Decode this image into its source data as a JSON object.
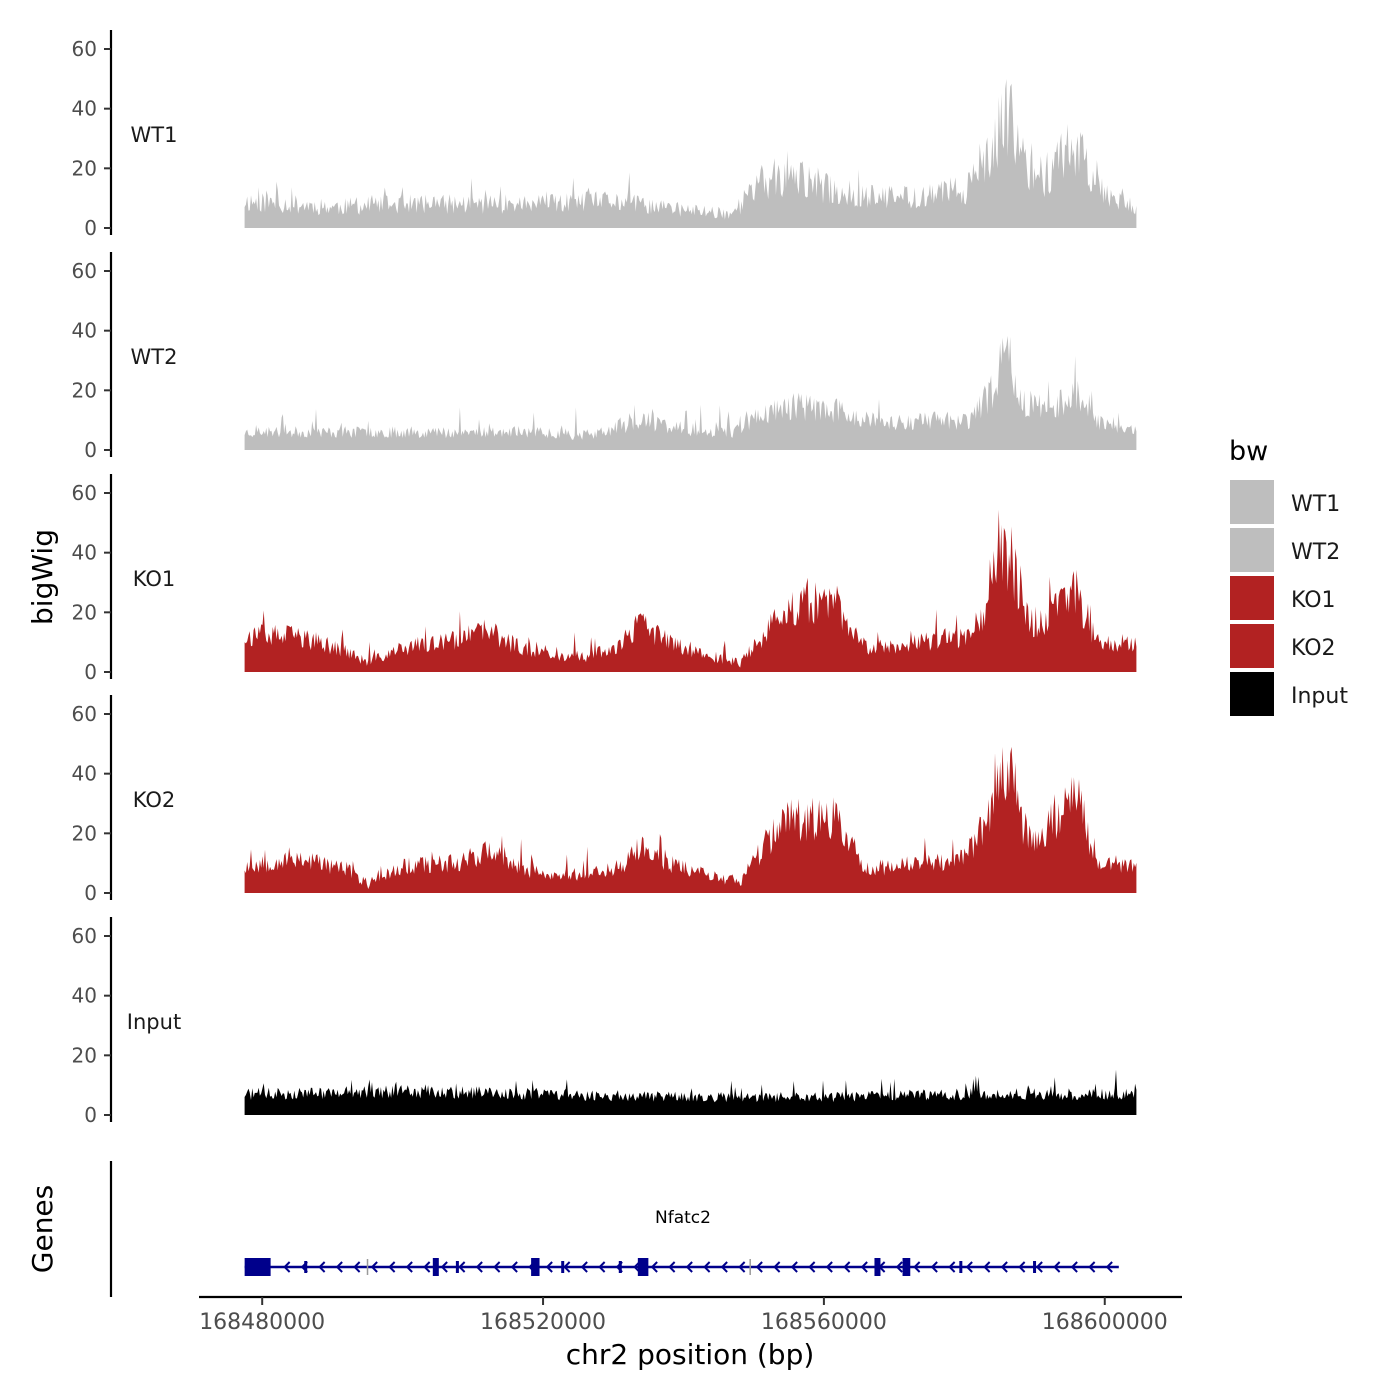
{
  "chart_data": {
    "type": "area",
    "ylabel": "bigWig",
    "xlabel": "chr2 position (bp)",
    "xlim": [
      168471000,
      168611000
    ],
    "ylim": [
      0,
      65
    ],
    "y_ticks": [
      0,
      20,
      40,
      60
    ],
    "x_ticks": [
      168480000,
      168520000,
      168560000,
      168600000
    ],
    "x_tick_labels": [
      "168480000",
      "168520000",
      "168560000",
      "168600000"
    ],
    "data_range": [
      168477500,
      168604500
    ],
    "legend": {
      "title": "bw",
      "position": "right",
      "entries": [
        {
          "label": "WT1",
          "color": "#bebebe"
        },
        {
          "label": "WT2",
          "color": "#bebebe"
        },
        {
          "label": "KO1",
          "color": "#b22222"
        },
        {
          "label": "KO2",
          "color": "#b22222"
        },
        {
          "label": "Input",
          "color": "#000000"
        }
      ]
    },
    "series": [
      {
        "name": "WT1",
        "color": "#bebebe",
        "seed": 11,
        "noise": 5,
        "base": 4,
        "profile": [
          [
            168477500,
            9
          ],
          [
            168490000,
            7
          ],
          [
            168500000,
            8
          ],
          [
            168510000,
            8
          ],
          [
            168520000,
            8
          ],
          [
            168530000,
            9
          ],
          [
            168540000,
            6
          ],
          [
            168547000,
            5
          ],
          [
            168551000,
            15
          ],
          [
            168556000,
            17
          ],
          [
            168562000,
            12
          ],
          [
            168568000,
            10
          ],
          [
            168576000,
            11
          ],
          [
            168581000,
            14
          ],
          [
            168584000,
            24
          ],
          [
            168586000,
            40
          ],
          [
            168588000,
            25
          ],
          [
            168591000,
            16
          ],
          [
            168594000,
            25
          ],
          [
            168596000,
            28
          ],
          [
            168599000,
            14
          ],
          [
            168604500,
            7
          ]
        ]
      },
      {
        "name": "WT2",
        "color": "#bebebe",
        "seed": 23,
        "noise": 4,
        "base": 3,
        "profile": [
          [
            168477500,
            6
          ],
          [
            168490000,
            6
          ],
          [
            168500000,
            6
          ],
          [
            168510000,
            6
          ],
          [
            168520000,
            6
          ],
          [
            168527000,
            5
          ],
          [
            168534000,
            10
          ],
          [
            168540000,
            7
          ],
          [
            168547000,
            6
          ],
          [
            168551000,
            12
          ],
          [
            168556000,
            15
          ],
          [
            168562000,
            13
          ],
          [
            168568000,
            9
          ],
          [
            168576000,
            10
          ],
          [
            168581000,
            10
          ],
          [
            168584000,
            20
          ],
          [
            168586000,
            34
          ],
          [
            168588000,
            18
          ],
          [
            168591000,
            12
          ],
          [
            168594000,
            17
          ],
          [
            168596000,
            20
          ],
          [
            168599000,
            10
          ],
          [
            168604500,
            6
          ]
        ]
      },
      {
        "name": "KO1",
        "color": "#b22222",
        "seed": 37,
        "noise": 4,
        "base": 3,
        "profile": [
          [
            168477500,
            12
          ],
          [
            168485000,
            12
          ],
          [
            168492000,
            7
          ],
          [
            168495000,
            3
          ],
          [
            168500000,
            8
          ],
          [
            168507000,
            10
          ],
          [
            168512000,
            14
          ],
          [
            168516000,
            9
          ],
          [
            168520000,
            6
          ],
          [
            168526000,
            5
          ],
          [
            168531000,
            9
          ],
          [
            168534000,
            16
          ],
          [
            168538000,
            10
          ],
          [
            168544000,
            5
          ],
          [
            168548000,
            3
          ],
          [
            168552000,
            14
          ],
          [
            168557000,
            24
          ],
          [
            168562000,
            22
          ],
          [
            168566000,
            8
          ],
          [
            168574000,
            10
          ],
          [
            168580000,
            12
          ],
          [
            168583000,
            22
          ],
          [
            168585000,
            45
          ],
          [
            168587000,
            36
          ],
          [
            168589000,
            18
          ],
          [
            168591000,
            16
          ],
          [
            168594000,
            28
          ],
          [
            168596000,
            26
          ],
          [
            168599000,
            10
          ],
          [
            168604500,
            10
          ]
        ]
      },
      {
        "name": "KO2",
        "color": "#b22222",
        "seed": 53,
        "noise": 4,
        "base": 3,
        "profile": [
          [
            168477500,
            9
          ],
          [
            168485000,
            12
          ],
          [
            168492000,
            8
          ],
          [
            168495000,
            3
          ],
          [
            168500000,
            9
          ],
          [
            168507000,
            10
          ],
          [
            168512000,
            14
          ],
          [
            168516000,
            9
          ],
          [
            168520000,
            6
          ],
          [
            168526000,
            6
          ],
          [
            168531000,
            9
          ],
          [
            168534000,
            15
          ],
          [
            168538000,
            10
          ],
          [
            168544000,
            6
          ],
          [
            168548000,
            3
          ],
          [
            168552000,
            18
          ],
          [
            168556000,
            26
          ],
          [
            168562000,
            24
          ],
          [
            168566000,
            8
          ],
          [
            168574000,
            10
          ],
          [
            168580000,
            12
          ],
          [
            168583000,
            22
          ],
          [
            168585000,
            46
          ],
          [
            168587000,
            36
          ],
          [
            168589000,
            18
          ],
          [
            168591000,
            18
          ],
          [
            168594000,
            30
          ],
          [
            168596000,
            32
          ],
          [
            168599000,
            10
          ],
          [
            168604500,
            9
          ]
        ]
      },
      {
        "name": "Input",
        "color": "#000000",
        "seed": 71,
        "noise": 3.5,
        "base": 2,
        "profile": [
          [
            168477500,
            7
          ],
          [
            168500000,
            8
          ],
          [
            168520000,
            7
          ],
          [
            168540000,
            6
          ],
          [
            168560000,
            6
          ],
          [
            168580000,
            7
          ],
          [
            168604500,
            7
          ]
        ]
      }
    ],
    "genes_track": {
      "label": "Genes",
      "gene_name": "Nfatc2",
      "strand": "-",
      "color": "#00008b",
      "start": 168477500,
      "end": 168602000,
      "exons": [
        [
          168477500,
          168481200
        ],
        [
          168504300,
          168505000
        ],
        [
          168518300,
          168519500
        ],
        [
          168533500,
          168535000
        ],
        [
          168567200,
          168568000
        ],
        [
          168571200,
          168572300
        ]
      ],
      "small_exons": [
        168486200,
        168507800,
        168522800,
        168531000,
        168579500,
        168590000
      ],
      "separators": [
        168495000,
        168549500
      ]
    }
  }
}
